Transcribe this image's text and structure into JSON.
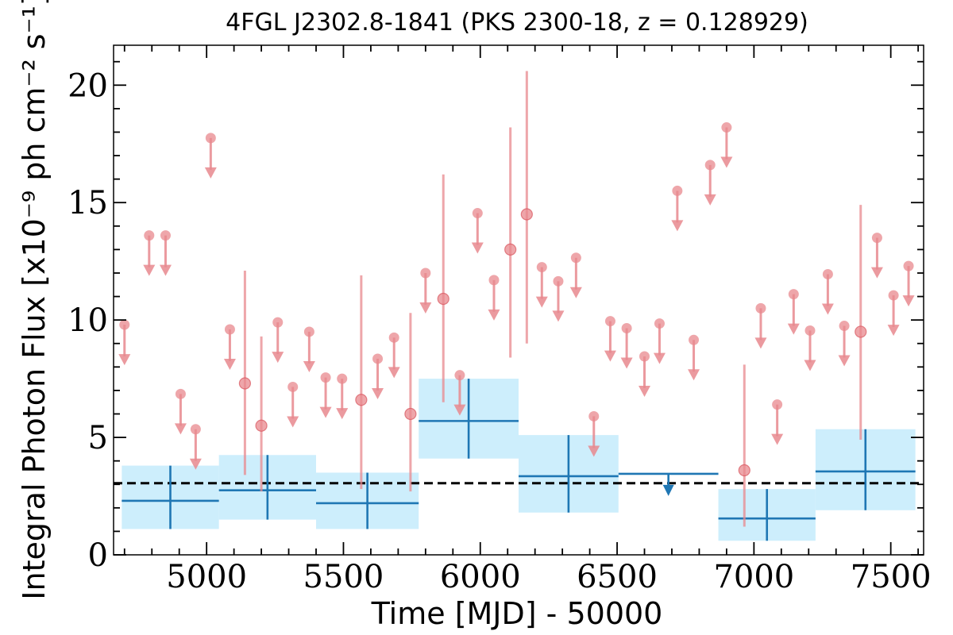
{
  "chart_data": {
    "type": "scatter",
    "title": "4FGL J2302.8-1841 (PKS 2300-18, z = 0.128929)",
    "xlabel": "Time [MJD] - 50000",
    "ylabel": "Integral Photon Flux [x10⁻⁹ ph cm⁻² s⁻¹]",
    "xlim": [
      4660,
      7620
    ],
    "ylim": [
      0,
      21.7
    ],
    "xticks": [
      5000,
      5500,
      6000,
      6500,
      7000,
      7500
    ],
    "yticks": [
      0,
      5,
      10,
      15,
      20
    ],
    "grid": false,
    "reference_line": {
      "y": 3.05,
      "style": "dashed",
      "color": "#000000"
    },
    "series": [
      {
        "marker": "circle-arrow",
        "color": "#e8888e",
        "upper_limits": [
          {
            "x": 4700,
            "y": 9.8
          },
          {
            "x": 4790,
            "y": 13.6
          },
          {
            "x": 4850,
            "y": 13.6
          },
          {
            "x": 4905,
            "y": 6.85
          },
          {
            "x": 4960,
            "y": 5.35
          },
          {
            "x": 5015,
            "y": 17.75
          },
          {
            "x": 5085,
            "y": 9.6
          },
          {
            "x": 5260,
            "y": 9.9
          },
          {
            "x": 5315,
            "y": 7.15
          },
          {
            "x": 5375,
            "y": 9.5
          },
          {
            "x": 5435,
            "y": 7.55
          },
          {
            "x": 5495,
            "y": 7.5
          },
          {
            "x": 5625,
            "y": 8.35
          },
          {
            "x": 5685,
            "y": 9.25
          },
          {
            "x": 5800,
            "y": 12.0
          },
          {
            "x": 5925,
            "y": 7.65
          },
          {
            "x": 5990,
            "y": 14.55
          },
          {
            "x": 6050,
            "y": 11.7
          },
          {
            "x": 6225,
            "y": 12.25
          },
          {
            "x": 6285,
            "y": 11.65
          },
          {
            "x": 6350,
            "y": 12.65
          },
          {
            "x": 6415,
            "y": 5.9
          },
          {
            "x": 6475,
            "y": 9.95
          },
          {
            "x": 6535,
            "y": 9.65
          },
          {
            "x": 6600,
            "y": 8.45
          },
          {
            "x": 6655,
            "y": 9.85
          },
          {
            "x": 6720,
            "y": 15.5
          },
          {
            "x": 6780,
            "y": 9.15
          },
          {
            "x": 6840,
            "y": 16.6
          },
          {
            "x": 6900,
            "y": 18.2
          },
          {
            "x": 7025,
            "y": 10.5
          },
          {
            "x": 7085,
            "y": 6.4
          },
          {
            "x": 7145,
            "y": 11.1
          },
          {
            "x": 7205,
            "y": 9.55
          },
          {
            "x": 7270,
            "y": 11.95
          },
          {
            "x": 7330,
            "y": 9.75
          },
          {
            "x": 7450,
            "y": 13.5
          },
          {
            "x": 7510,
            "y": 11.05
          },
          {
            "x": 7565,
            "y": 12.3
          }
        ],
        "detections": [
          {
            "x": 5140,
            "y": 7.3,
            "yerr_low": 3.4,
            "yerr_high": 12.1
          },
          {
            "x": 5200,
            "y": 5.5,
            "yerr_low": 2.7,
            "yerr_high": 9.3
          },
          {
            "x": 5565,
            "y": 6.6,
            "yerr_low": 2.8,
            "yerr_high": 11.9
          },
          {
            "x": 5745,
            "y": 6.0,
            "yerr_low": 2.7,
            "yerr_high": 10.3
          },
          {
            "x": 5865,
            "y": 10.9,
            "yerr_low": 6.5,
            "yerr_high": 16.2
          },
          {
            "x": 6110,
            "y": 13.0,
            "yerr_low": 8.4,
            "yerr_high": 18.2
          },
          {
            "x": 6170,
            "y": 14.5,
            "yerr_low": 9.0,
            "yerr_high": 20.6
          },
          {
            "x": 6965,
            "y": 3.6,
            "yerr_low": 1.2,
            "yerr_high": 8.1
          },
          {
            "x": 7390,
            "y": 9.5,
            "yerr_low": 4.9,
            "yerr_high": 14.9
          }
        ]
      },
      {
        "marker": "crosshair-box",
        "color": "#1f77b4",
        "box_color": "#cdeefc",
        "bins": [
          {
            "x0": 4690,
            "x1": 5045,
            "y": 2.3,
            "ylo": 1.1,
            "yhi": 3.8
          },
          {
            "x0": 5045,
            "x1": 5400,
            "y": 2.75,
            "ylo": 1.5,
            "yhi": 4.25
          },
          {
            "x0": 5400,
            "x1": 5775,
            "y": 2.2,
            "ylo": 1.1,
            "yhi": 3.5
          },
          {
            "x0": 5775,
            "x1": 6140,
            "y": 5.7,
            "ylo": 4.1,
            "yhi": 7.5
          },
          {
            "x0": 6140,
            "x1": 6505,
            "y": 3.35,
            "ylo": 1.8,
            "yhi": 5.1
          },
          {
            "x0": 6505,
            "x1": 6870,
            "y": 3.45,
            "upper_limit": true
          },
          {
            "x0": 6870,
            "x1": 7225,
            "y": 1.55,
            "ylo": 0.6,
            "yhi": 2.8
          },
          {
            "x0": 7225,
            "x1": 7590,
            "y": 3.55,
            "ylo": 1.9,
            "yhi": 5.35
          }
        ]
      }
    ]
  }
}
